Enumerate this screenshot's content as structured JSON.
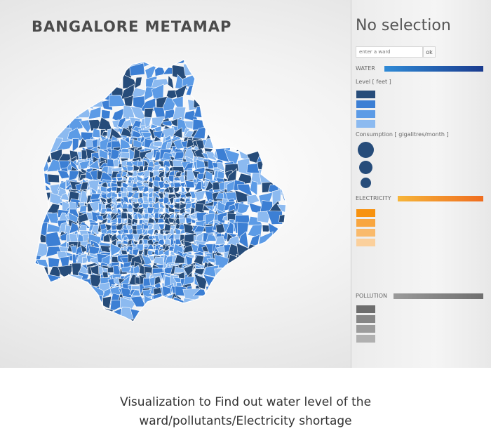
{
  "title": "BANGALORE METAMAP",
  "sidebar": {
    "selection_text": "No selection",
    "ward_placeholder": "enter a ward",
    "ok_label": "ok",
    "water_label": "WATER",
    "level_label": "Level [ feet ]",
    "consumption_label": "Consumption [ gigalitres/month ]",
    "electricity_label": "ELECTRICITY",
    "pollution_label": "POLLUTION"
  },
  "colors": {
    "water_scale": [
      "#264c7a",
      "#3c7fd4",
      "#5c9be6",
      "#8cbaf0"
    ],
    "electricity_scale": [
      "#f7920f",
      "#f8a640",
      "#f9ba6c",
      "#fbd09c"
    ],
    "pollution_scale": [
      "#6d6d6d",
      "#868686",
      "#9c9c9c",
      "#b0b0b0"
    ],
    "map_outline": "#ffffff"
  },
  "caption": {
    "line1": "Visualization to Find out water level of the",
    "line2": "ward/pollutants/Electricity shortage"
  }
}
